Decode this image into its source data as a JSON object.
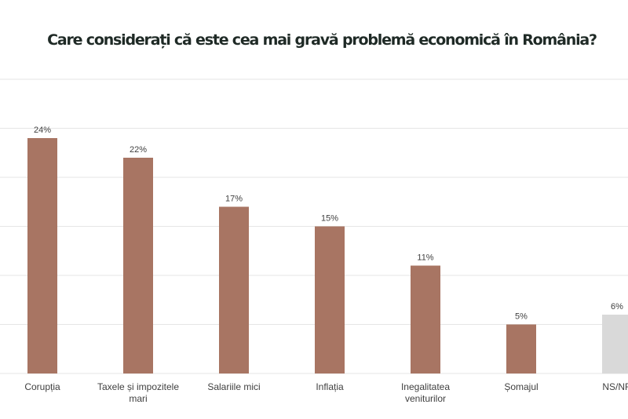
{
  "chart_data": {
    "type": "bar",
    "title": "Care considerați că este cea mai gravă problemă economică în România?",
    "categories": [
      "Corupția",
      [
        "Taxele și impozitele",
        "mari"
      ],
      "Salariile mici",
      "Inflația",
      [
        "Inegalitatea",
        "veniturilor"
      ],
      "Șomajul",
      "NS/NR"
    ],
    "values": [
      24,
      22,
      17,
      15,
      11,
      5,
      6
    ],
    "data_labels": [
      "24%",
      "22%",
      "17%",
      "15%",
      "11%",
      "5%",
      "6%"
    ],
    "ylim": [
      0,
      30
    ],
    "grid": true,
    "colors": {
      "bar": "#a87563",
      "last_bar": "#d9d9d9",
      "grid": "#e6e6e6",
      "text": "#404040"
    }
  }
}
